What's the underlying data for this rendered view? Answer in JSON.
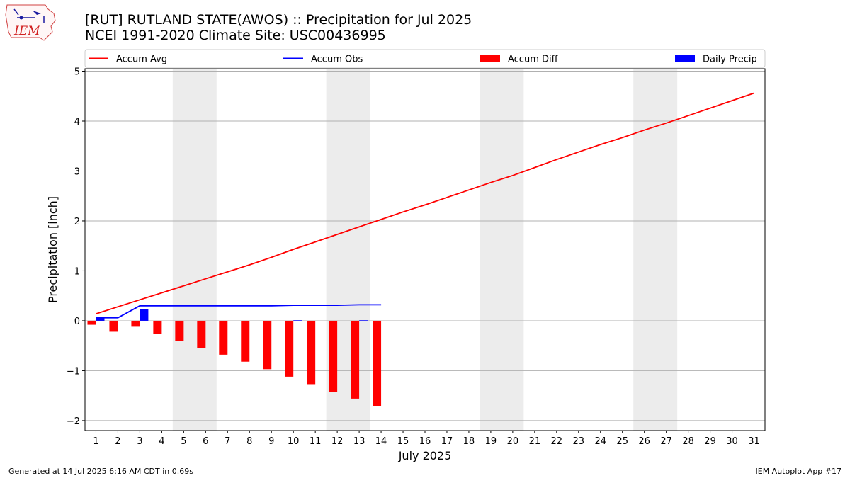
{
  "header": {
    "title_line1": "[RUT] RUTLAND STATE(AWOS) :: Precipitation for Jul 2025",
    "title_line2": "NCEI 1991-2020 Climate Site: USC00436995",
    "logo_text": "IEM"
  },
  "footer": {
    "generated": "Generated at 14 Jul 2025 6:16 AM CDT in 0.69s",
    "app": "IEM Autoplot App #17"
  },
  "colors": {
    "accum_avg": "#ff0000",
    "accum_obs": "#0000ff",
    "accum_diff": "#ff0000",
    "daily_precip": "#0000ff",
    "weekend_shade": "#ececec",
    "grid": "#b0b0b0"
  },
  "chart_data": {
    "type": "bar",
    "xlabel": "July 2025",
    "ylabel": "Precipitation [inch]",
    "xlim": [
      0.5,
      31.5
    ],
    "ylim": [
      -2.2,
      5.05
    ],
    "yticks": [
      -2,
      -1,
      0,
      1,
      2,
      3,
      4,
      5
    ],
    "ytick_labels": [
      "−2",
      "−1",
      "0",
      "1",
      "2",
      "3",
      "4",
      "5"
    ],
    "xticks": [
      1,
      2,
      3,
      4,
      5,
      6,
      7,
      8,
      9,
      10,
      11,
      12,
      13,
      14,
      15,
      16,
      17,
      18,
      19,
      20,
      21,
      22,
      23,
      24,
      25,
      26,
      27,
      28,
      29,
      30,
      31
    ],
    "grid": "horizontal",
    "legend": {
      "position": "top",
      "entries": [
        {
          "label": "Accum Avg",
          "kind": "line",
          "color": "#ff0000"
        },
        {
          "label": "Accum Obs",
          "kind": "line",
          "color": "#0000ff"
        },
        {
          "label": "Accum Diff",
          "kind": "bar",
          "color": "#ff0000"
        },
        {
          "label": "Daily Precip",
          "kind": "bar",
          "color": "#0000ff"
        }
      ]
    },
    "weekend_spans": [
      [
        4.5,
        6.5
      ],
      [
        11.5,
        13.5
      ],
      [
        18.5,
        20.5
      ],
      [
        25.5,
        27.5
      ]
    ],
    "series": [
      {
        "name": "Accum Avg",
        "kind": "line",
        "x": [
          1,
          2,
          3,
          4,
          5,
          6,
          7,
          8,
          9,
          10,
          11,
          12,
          13,
          14,
          15,
          16,
          17,
          18,
          19,
          20,
          21,
          22,
          23,
          24,
          25,
          26,
          27,
          28,
          29,
          30,
          31
        ],
        "values": [
          0.14,
          0.28,
          0.42,
          0.56,
          0.7,
          0.84,
          0.98,
          1.12,
          1.27,
          1.43,
          1.58,
          1.73,
          1.88,
          2.03,
          2.18,
          2.32,
          2.47,
          2.62,
          2.77,
          2.91,
          3.07,
          3.23,
          3.38,
          3.53,
          3.67,
          3.82,
          3.96,
          4.11,
          4.26,
          4.41,
          4.56
        ]
      },
      {
        "name": "Accum Obs",
        "kind": "line",
        "x": [
          1,
          2,
          3,
          4,
          5,
          6,
          7,
          8,
          9,
          10,
          11,
          12,
          13,
          14
        ],
        "values": [
          0.06,
          0.06,
          0.3,
          0.3,
          0.3,
          0.3,
          0.3,
          0.3,
          0.3,
          0.31,
          0.31,
          0.31,
          0.32,
          0.32
        ]
      },
      {
        "name": "Accum Diff",
        "kind": "bar",
        "x": [
          1,
          2,
          3,
          4,
          5,
          6,
          7,
          8,
          9,
          10,
          11,
          12,
          13,
          14
        ],
        "values": [
          -0.08,
          -0.22,
          -0.12,
          -0.26,
          -0.4,
          -0.54,
          -0.68,
          -0.82,
          -0.97,
          -1.12,
          -1.27,
          -1.42,
          -1.56,
          -1.71
        ]
      },
      {
        "name": "Daily Precip",
        "kind": "bar",
        "x": [
          1,
          2,
          3,
          4,
          5,
          6,
          7,
          8,
          9,
          10,
          11,
          12,
          13,
          14
        ],
        "values": [
          0.06,
          0.0,
          0.24,
          0.0,
          0.0,
          0.0,
          0.0,
          0.0,
          0.0,
          0.01,
          0.0,
          0.0,
          0.01,
          0.0
        ]
      }
    ]
  }
}
